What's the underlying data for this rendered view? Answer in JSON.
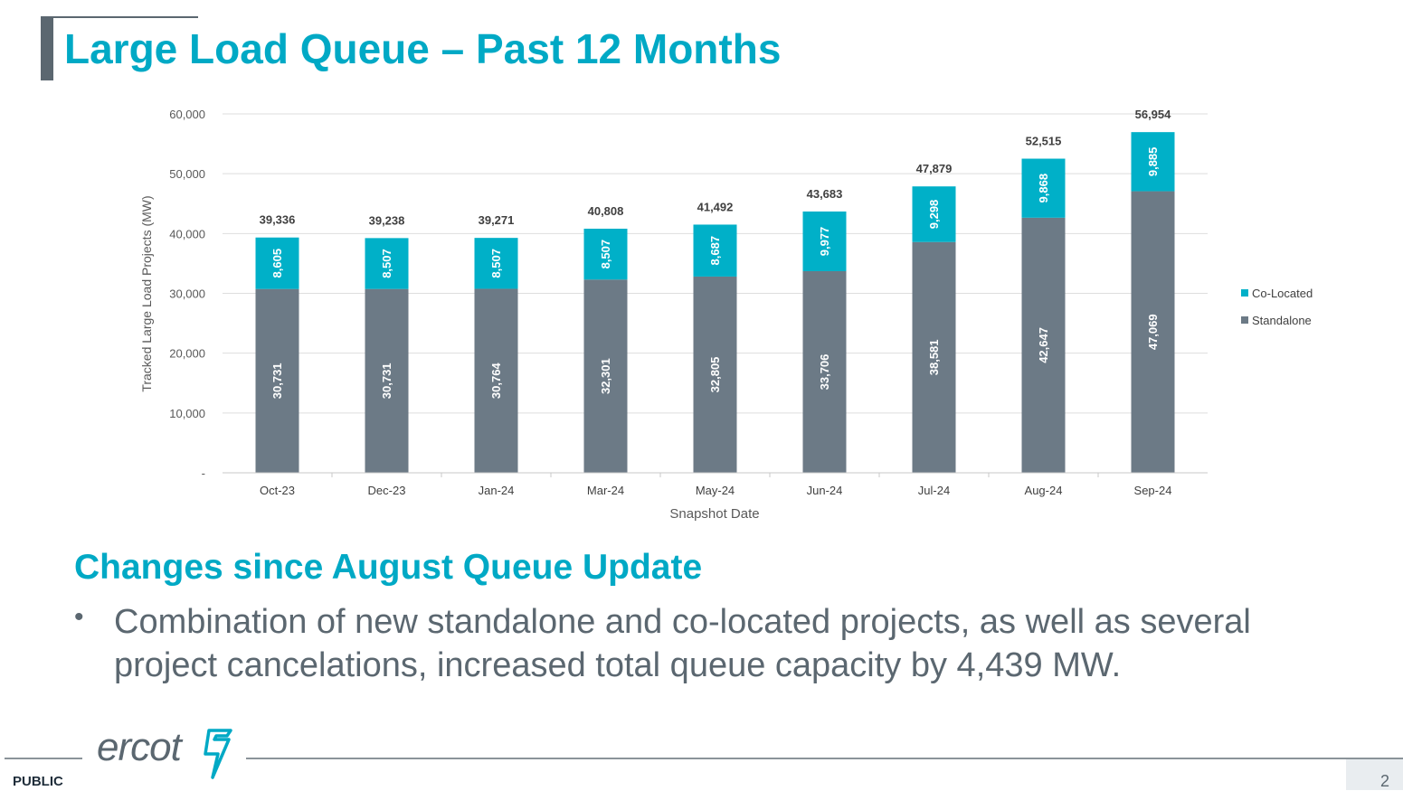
{
  "slide": {
    "title": "Large Load Queue – Past 12 Months",
    "subheading": "Changes since August Queue Update",
    "bullets": [
      "Combination of new standalone and co-located projects, as well as several project cancelations, increased total queue capacity by 4,439 MW."
    ],
    "footer_label": "PUBLIC",
    "page_number": "2",
    "logo_text": "ercot"
  },
  "colors": {
    "accent": "#00a9c5",
    "standalone": "#6c7a86",
    "co_located": "#00b0c8",
    "text_gray": "#5b6770"
  },
  "chart_data": {
    "type": "bar",
    "stacked": true,
    "categories": [
      "Oct-23",
      "Dec-23",
      "Jan-24",
      "Mar-24",
      "May-24",
      "Jun-24",
      "Jul-24",
      "Aug-24",
      "Sep-24"
    ],
    "series": [
      {
        "name": "Standalone",
        "values": [
          30731,
          30731,
          30764,
          32301,
          32805,
          33706,
          38581,
          42647,
          47069
        ],
        "labels": [
          "30,731",
          "30,731",
          "30,764",
          "32,301",
          "32,805",
          "33,706",
          "38,581",
          "42,647",
          "47,069"
        ]
      },
      {
        "name": "Co-Located",
        "values": [
          8605,
          8507,
          8507,
          8507,
          8687,
          9977,
          9298,
          9868,
          9885
        ],
        "labels": [
          "8,605",
          "8,507",
          "8,507",
          "8,507",
          "8,687",
          "9,977",
          "9,298",
          "9,868",
          "9,885"
        ]
      }
    ],
    "totals": [
      39336,
      39238,
      39271,
      40808,
      41492,
      43683,
      47879,
      52515,
      56954
    ],
    "total_labels": [
      "39,336",
      "39,238",
      "39,271",
      "40,808",
      "41,492",
      "43,683",
      "47,879",
      "52,515",
      "56,954"
    ],
    "xlabel": "Snapshot Date",
    "ylabel": "Tracked Large Load Projects (MW)",
    "ylim": [
      0,
      60000
    ],
    "yticks": [
      0,
      10000,
      20000,
      30000,
      40000,
      50000,
      60000
    ],
    "ytick_labels": [
      "-",
      "10,000",
      "20,000",
      "30,000",
      "40,000",
      "50,000",
      "60,000"
    ],
    "legend": [
      "Co-Located",
      "Standalone"
    ],
    "legend_position": "right",
    "grid": true
  }
}
